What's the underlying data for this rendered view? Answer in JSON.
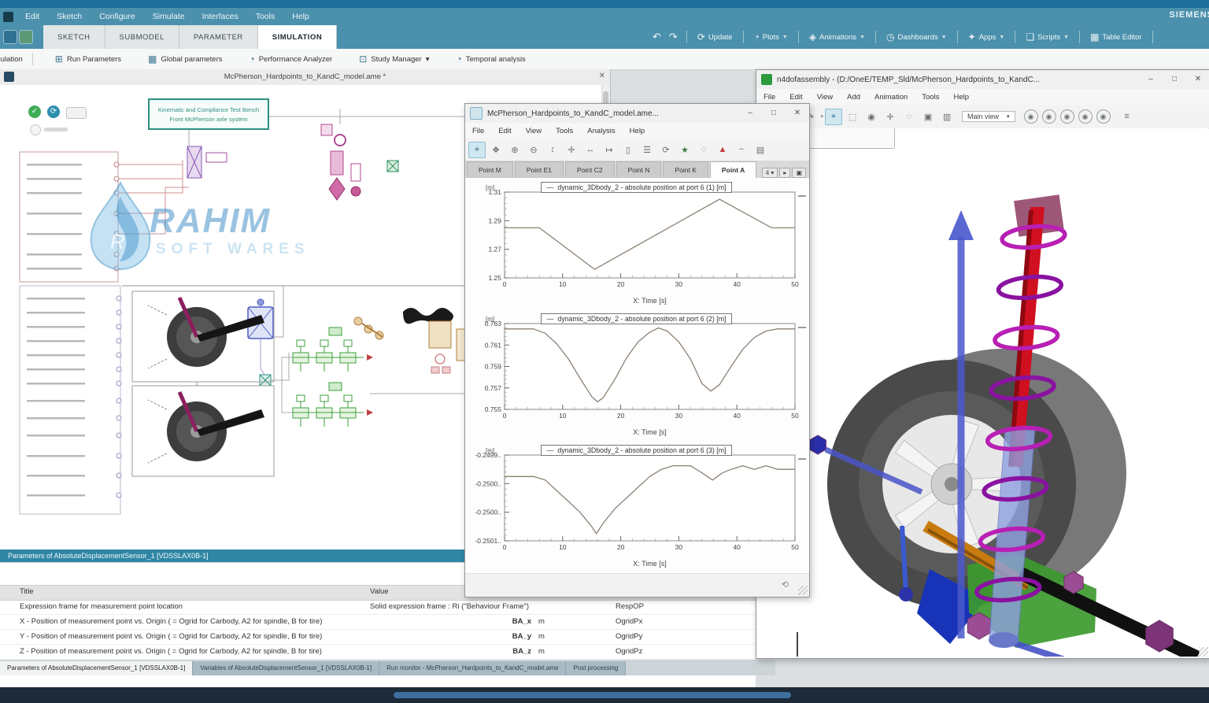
{
  "chrome": {
    "brand": "SIEMENS",
    "menu": [
      "Edit",
      "Sketch",
      "Configure",
      "Simulate",
      "Interfaces",
      "Tools",
      "Help"
    ],
    "mode_tabs": [
      "SKETCH",
      "SUBMODEL",
      "PARAMETER",
      "SIMULATION"
    ],
    "active_mode_tab": "SIMULATION",
    "quick_actions": [
      {
        "label": "Update",
        "icon": "refresh",
        "dropdown": false
      },
      {
        "label": "Plots",
        "icon": "plots",
        "dropdown": true
      },
      {
        "label": "Animations",
        "icon": "animations",
        "dropdown": true
      },
      {
        "label": "Dashboards",
        "icon": "dashboards",
        "dropdown": true
      },
      {
        "label": "Apps",
        "icon": "apps",
        "dropdown": true
      },
      {
        "label": "Scripts",
        "icon": "scripts",
        "dropdown": true
      },
      {
        "label": "Table Editor",
        "icon": "table",
        "dropdown": false
      }
    ],
    "run_toolbar": {
      "left_label": "simulation",
      "items": [
        {
          "label": "Run Parameters",
          "icon": "runparams"
        },
        {
          "label": "Global parameters",
          "icon": "global"
        },
        {
          "label": "Performance Analyzer",
          "icon": "perf"
        },
        {
          "label": "Study Manager",
          "icon": "study",
          "dropdown": true
        },
        {
          "label": "Temporal analysis",
          "icon": "temporal"
        }
      ]
    }
  },
  "sketch": {
    "doc_tab": "McPherson_Hardpoints_to_KandC_model.ame *",
    "close_glyph": "✕",
    "note_line1": "Kinematic and Compliance Test Bench",
    "note_line2": "Front McPherson axle system",
    "watermark_title": "RAHIM",
    "watermark_subtitle": "SOFT WARES"
  },
  "params_panel": {
    "header": "Parameters of AbsoluteDisplacementSensor_1 [VDSSLAX0B-1]",
    "col_title": "Title",
    "col_value": "Value",
    "rows": [
      {
        "title": "Expression frame for measurement point location",
        "value_text": "Solid expression frame : Ri (\"Behaviour Frame\")",
        "tag": "RespOP"
      },
      {
        "title": "X - Position of measurement point vs. Origin ( = Ogrid for Carbody, A2 for spindle, B for tire)",
        "value_name": "BA_x",
        "unit": "m",
        "tag": "OgridPx"
      },
      {
        "title": "Y - Position of measurement point vs. Origin ( = Ogrid for Carbody, A2 for spindle, B for tire)",
        "value_name": "BA_y",
        "unit": "m",
        "tag": "OgridPy"
      },
      {
        "title": "Z - Position of measurement point vs. Origin ( = Ogrid for Carbody, A2 for spindle, B for tire)",
        "value_name": "BA_z",
        "unit": "m",
        "tag": "OgridPz"
      }
    ],
    "tabs": [
      "Parameters of AbsoluteDisplacementSensor_1 [VDSSLAX0B-1]",
      "Variables of AbsoluteDisplacementSensor_1 [VDSSLAX0B-1]",
      "Run monitor - McPherson_Hardpoints_to_KandC_model.ame",
      "Post processing"
    ],
    "active_tab_index": 0
  },
  "plot_window": {
    "title": "McPherson_Hardpoints_to_KandC_model.ame...",
    "menu": [
      "File",
      "Edit",
      "View",
      "Tools",
      "Analysis",
      "Help"
    ],
    "toolbar_icons": [
      "select",
      "pan",
      "zoom-in",
      "zoom-out",
      "fit-vertical",
      "crosshair",
      "fit-horizontal",
      "step",
      "frame",
      "list",
      "refresh",
      "star",
      "ellipse",
      "warning",
      "curve",
      "print"
    ],
    "tabs": [
      "Point M",
      "Point E1",
      "Point C2",
      "Point N",
      "Point K",
      "Point A"
    ],
    "active_tab": "Point A",
    "pager_value": "4"
  },
  "viewer_window": {
    "title": "n4dofassembly - (D:/OneE/TEMP_Sld/McPherson_Hardpoints_to_KandC...",
    "menu": [
      "File",
      "Edit",
      "View",
      "Add",
      "Animation",
      "Tools",
      "Help"
    ],
    "toolbar_icons": [
      "save",
      "undo",
      "redo",
      "select",
      "box-select",
      "orbit",
      "move",
      "zoom",
      "screenshot",
      "image"
    ],
    "view_dropdown": "Main view",
    "view_buttons": [
      "iso",
      "front",
      "top",
      "right",
      "back"
    ]
  },
  "chart_data": [
    {
      "type": "line",
      "legend": "dynamic_3Dbody_2 - absolute position at port 6 (1) [m]",
      "unit": "[m]",
      "xlabel": "X: Time [s]",
      "xmin": 0,
      "xmax": 50,
      "xticks": [
        0,
        10,
        20,
        30,
        40,
        50
      ],
      "ymax": 1.31,
      "ymin": 1.25,
      "yticks": [
        "1.31",
        "1.29",
        "1.27",
        "1.25"
      ],
      "x": [
        0,
        6,
        15.5,
        37,
        46,
        50
      ],
      "y": [
        1.285,
        1.285,
        1.256,
        1.305,
        1.285,
        1.285
      ]
    },
    {
      "type": "line",
      "legend": "dynamic_3Dbody_2 - absolute position at port 6 (2) [m]",
      "unit": "[m]",
      "xlabel": "X: Time [s]",
      "xmin": 0,
      "xmax": 50,
      "xticks": [
        0,
        10,
        20,
        30,
        40,
        50
      ],
      "ymax": 0.763,
      "ymin": 0.755,
      "yticks": [
        "0.763",
        "0.761",
        "0.759",
        "0.757",
        "0.755"
      ],
      "x": [
        0,
        5,
        7,
        9,
        11,
        13,
        15,
        16,
        17,
        19,
        21,
        23,
        25,
        26.5,
        28,
        30,
        32,
        34,
        35.5,
        37,
        39,
        41,
        43,
        45,
        47,
        50
      ],
      "y": [
        0.7625,
        0.7625,
        0.7621,
        0.7611,
        0.7597,
        0.7579,
        0.7562,
        0.7557,
        0.7561,
        0.7578,
        0.7598,
        0.7613,
        0.7622,
        0.7626,
        0.7623,
        0.7613,
        0.7597,
        0.7574,
        0.7567,
        0.7573,
        0.759,
        0.7606,
        0.7617,
        0.7623,
        0.7625,
        0.7625
      ]
    },
    {
      "type": "line",
      "legend": "dynamic_3Dbody_2 - absolute position at port 6 (3) [m]",
      "unit": "[m]",
      "xlabel": "X: Time [s]",
      "xmin": 0,
      "xmax": 50,
      "xticks": [
        0,
        10,
        20,
        30,
        40,
        50
      ],
      "ymax": -0.24988,
      "ymin": -0.25012,
      "yticks": [
        "-0.2499..",
        "-0.2500..",
        "-0.2500..",
        "-0.2501.."
      ],
      "x": [
        0,
        5,
        7,
        9,
        11,
        13,
        15,
        15.8,
        17,
        19,
        21,
        23,
        25,
        27,
        29,
        30.5,
        32,
        34,
        35.8,
        37.5,
        39,
        41,
        43,
        45,
        47,
        50
      ],
      "y": [
        -0.24994,
        -0.24994,
        -0.24995,
        -0.24998,
        -0.25001,
        -0.25004,
        -0.25008,
        -0.2501,
        -0.25007,
        -0.25003,
        -0.25,
        -0.24997,
        -0.24994,
        -0.24992,
        -0.24991,
        -0.24991,
        -0.24991,
        -0.24993,
        -0.24995,
        -0.24993,
        -0.24992,
        -0.24991,
        -0.24992,
        -0.24991,
        -0.24992,
        -0.24992
      ]
    }
  ],
  "colors": {
    "teal_bar": "#4b90ac",
    "teal_dark": "#1d6f9c",
    "panel_header": "#2f86a5",
    "curve": "#8c8174",
    "watermark_blue": "#3e8cc6",
    "strut_red": "#d01020",
    "spring_magenta": "#b01fb0",
    "arm_green": "#3c9a2e",
    "rod_orange": "#c87c10",
    "axis_blue": "#4a58cc"
  }
}
